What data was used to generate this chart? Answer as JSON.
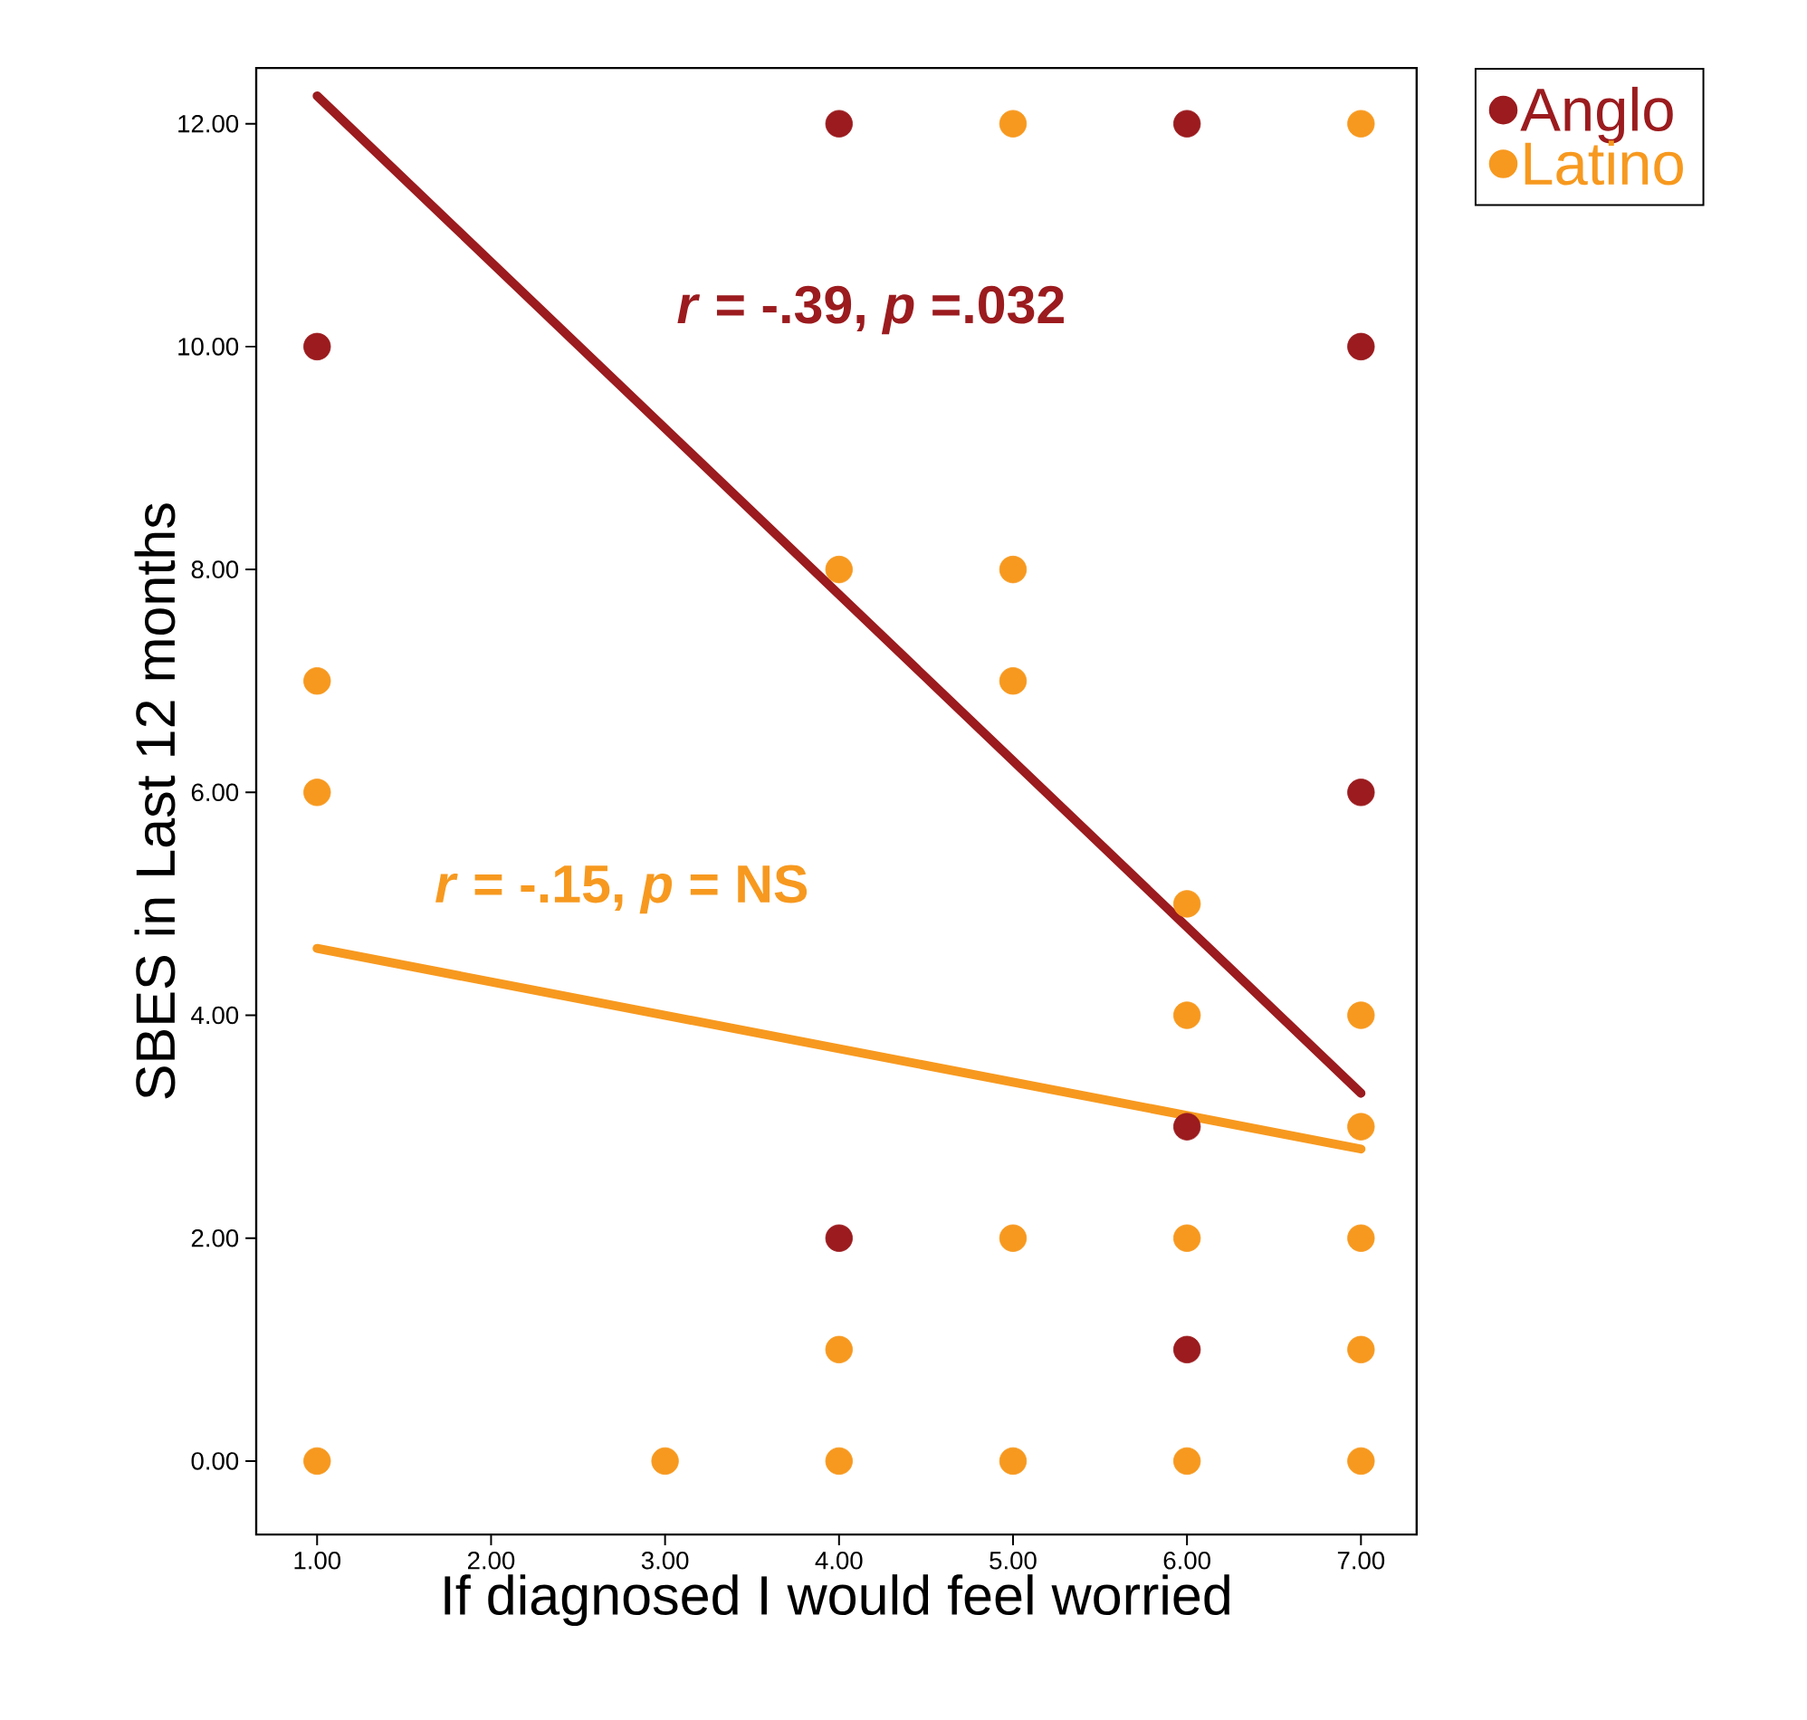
{
  "chart_data": {
    "type": "scatter",
    "xlabel": "If diagnosed I would feel worried",
    "ylabel": "SBES in Last 12 months",
    "xlim": [
      0.65,
      7.32
    ],
    "ylim": [
      -0.66,
      12.5
    ],
    "xticks": [
      {
        "value": 1,
        "label": "1.00"
      },
      {
        "value": 2,
        "label": "2.00"
      },
      {
        "value": 3,
        "label": "3.00"
      },
      {
        "value": 4,
        "label": "4.00"
      },
      {
        "value": 5,
        "label": "5.00"
      },
      {
        "value": 6,
        "label": "6.00"
      },
      {
        "value": 7,
        "label": "7.00"
      }
    ],
    "yticks": [
      {
        "value": 0,
        "label": "0.00"
      },
      {
        "value": 2,
        "label": "2.00"
      },
      {
        "value": 4,
        "label": "4.00"
      },
      {
        "value": 6,
        "label": "6.00"
      },
      {
        "value": 8,
        "label": "8.00"
      },
      {
        "value": 10,
        "label": "10.00"
      },
      {
        "value": 12,
        "label": "12.00"
      }
    ],
    "marker": "circle",
    "legend": "right",
    "grid": false,
    "series": [
      {
        "name": "Anglo",
        "color": "#9b1b1e",
        "x": [
          1,
          4,
          6,
          7,
          7,
          6,
          4,
          6
        ],
        "values": [
          10,
          12,
          12,
          10,
          6,
          3,
          2,
          1
        ]
      },
      {
        "name": "Latino",
        "color": "#f7991f",
        "x": [
          1,
          1,
          1,
          3,
          4,
          4,
          4,
          5,
          5,
          5,
          5,
          5,
          6,
          6,
          6,
          6,
          7,
          7,
          7,
          7,
          7,
          7
        ],
        "values": [
          7,
          6,
          0,
          0,
          8,
          1,
          0,
          12,
          8,
          7,
          2,
          0,
          5,
          4,
          2,
          0,
          12,
          4,
          3,
          2,
          1,
          0
        ]
      },
      {
        "type": "line",
        "marker": "none",
        "color": "#9b1b1e",
        "x": [
          1,
          7
        ],
        "values": [
          12.25,
          3.3
        ]
      },
      {
        "type": "line",
        "marker": "none",
        "color": "#f7991f",
        "x": [
          1,
          7
        ],
        "values": [
          4.6,
          2.8
        ]
      }
    ],
    "annotations": [
      "*r* = -.39, *p* =.032",
      "*r* = -.15, *p* = NS"
    ]
  }
}
